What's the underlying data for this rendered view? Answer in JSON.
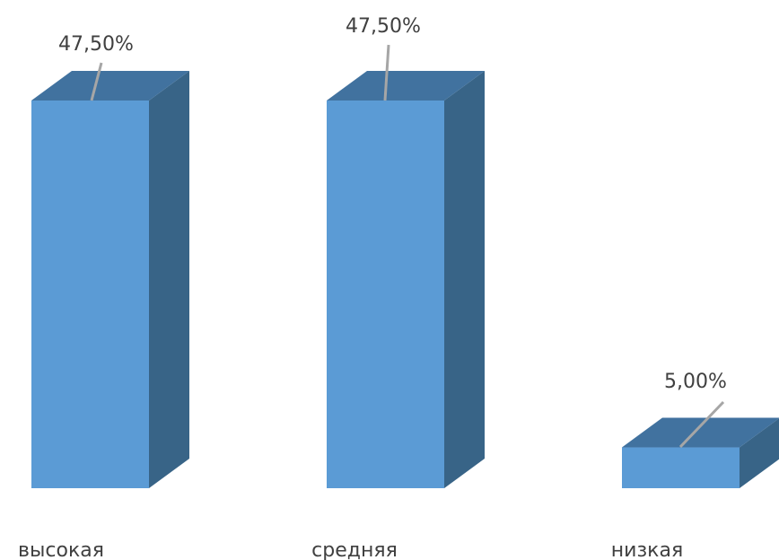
{
  "chart_data": {
    "type": "bar",
    "style": "3d-column",
    "categories": [
      "высокая",
      "средняя",
      "низкая"
    ],
    "values": [
      47.5,
      47.5,
      5.0
    ],
    "data_labels": [
      "47,50%",
      "47,50%",
      "5,00%"
    ],
    "value_unit": "%",
    "ylim": [
      0,
      47.5
    ],
    "grid": false,
    "legend": "none",
    "colors": {
      "front": "#5b9bd5",
      "top": "#41729f",
      "side": "#386487",
      "leader_line": "#a6a6a6",
      "text": "#404040"
    }
  }
}
